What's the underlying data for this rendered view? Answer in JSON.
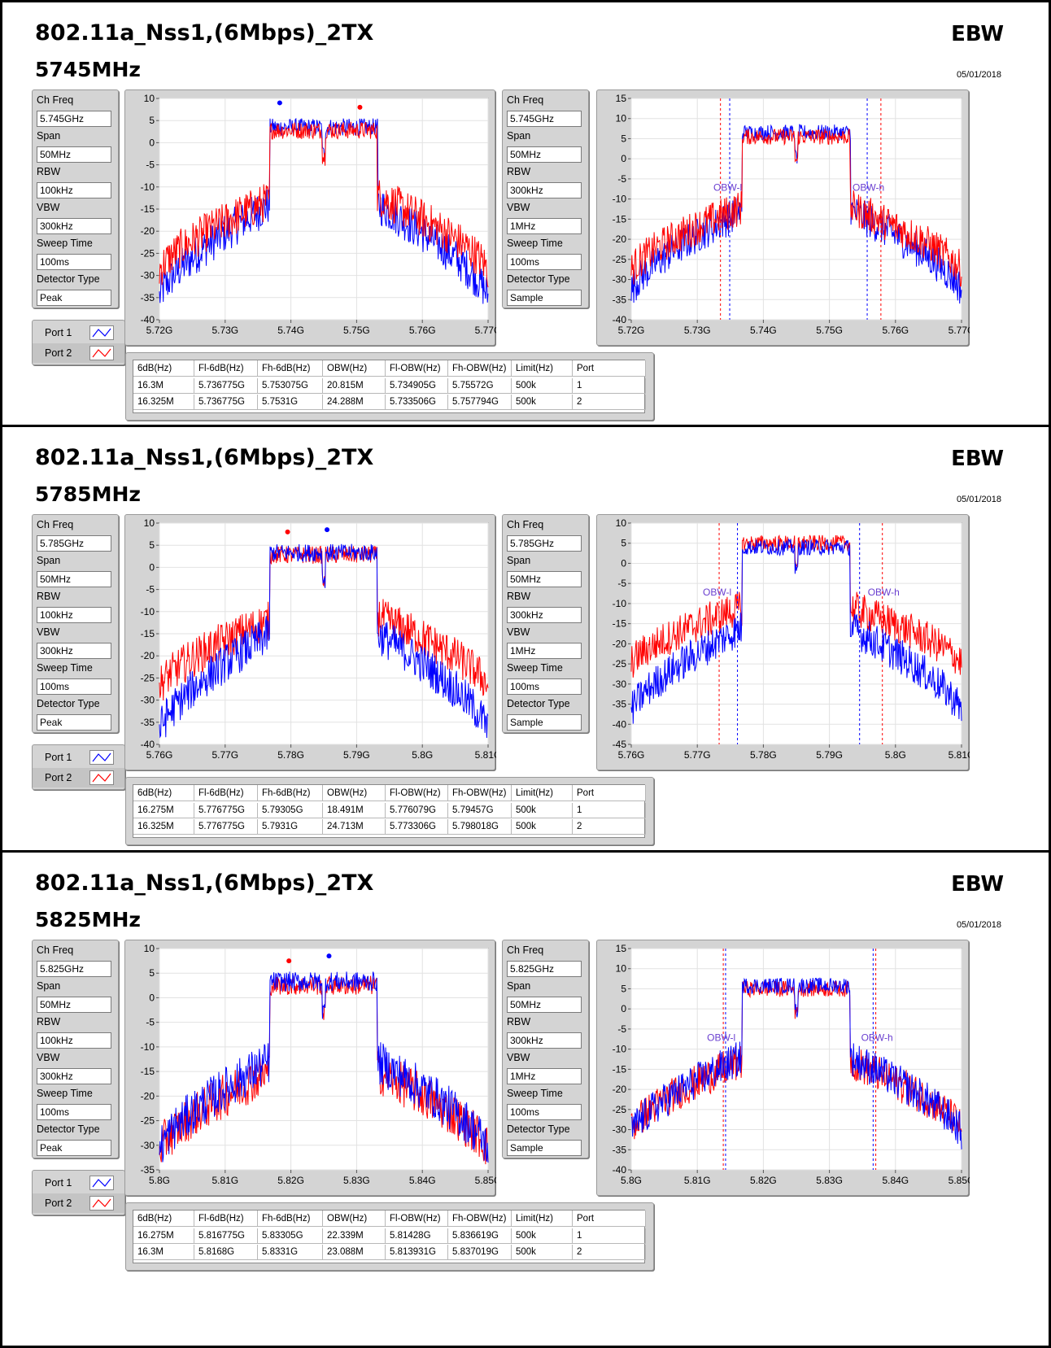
{
  "sections": [
    {
      "title": "802.11a_Nss1,(6Mbps)_2TX",
      "freq": "5745MHz",
      "ebw": "EBW",
      "date": "05/01/2018",
      "left_params": [
        {
          "label": "Ch Freq",
          "value": "5.745GHz"
        },
        {
          "label": "Span",
          "value": "50MHz"
        },
        {
          "label": "RBW",
          "value": "100kHz"
        },
        {
          "label": "VBW",
          "value": "300kHz"
        },
        {
          "label": "Sweep Time",
          "value": "100ms"
        },
        {
          "label": "Detector Type",
          "value": "Peak"
        }
      ],
      "right_params": [
        {
          "label": "Ch Freq",
          "value": "5.745GHz"
        },
        {
          "label": "Span",
          "value": "50MHz"
        },
        {
          "label": "RBW",
          "value": "300kHz"
        },
        {
          "label": "VBW",
          "value": "1MHz"
        },
        {
          "label": "Sweep Time",
          "value": "100ms"
        },
        {
          "label": "Detector Type",
          "value": "Sample"
        }
      ],
      "legend": [
        "Port 1",
        "Port 2"
      ],
      "chart1": {
        "type": "line",
        "yticks": [
          "10",
          "5",
          "0",
          "-5",
          "-10",
          "-15",
          "-20",
          "-25",
          "-30",
          "-35",
          "-40"
        ],
        "ylim": [
          -40,
          10
        ],
        "xticks": [
          "5.72G",
          "5.73G",
          "5.74G",
          "5.75G",
          "5.76G",
          "5.77G"
        ],
        "xlim": [
          5.72,
          5.77
        ],
        "series": [
          {
            "color": "#0000ff",
            "in_band": 3.5,
            "shoulder_left": -14,
            "shoulder_right": -14,
            "edge": -35,
            "band": [
              5.7368,
              5.7532
            ],
            "marker": [
              5.7383,
              9
            ]
          },
          {
            "color": "#ff0000",
            "in_band": 2.8,
            "shoulder_left": -13,
            "shoulder_right": -12,
            "edge": -29,
            "band": [
              5.7368,
              5.7531
            ],
            "marker": [
              5.7505,
              8
            ]
          }
        ]
      },
      "chart2": {
        "type": "line",
        "yticks": [
          "15",
          "10",
          "5",
          "0",
          "-5",
          "-10",
          "-15",
          "-20",
          "-25",
          "-30",
          "-35",
          "-40"
        ],
        "ylim": [
          -40,
          15
        ],
        "xticks": [
          "5.72G",
          "5.73G",
          "5.74G",
          "5.75G",
          "5.76G",
          "5.77G"
        ],
        "xlim": [
          5.72,
          5.77
        ],
        "annotations": [
          "OBW-l",
          "OBW-h"
        ],
        "series": [
          {
            "color": "#0000ff",
            "in_band": 6.5,
            "shoulder_left": -13,
            "shoulder_right": -13,
            "edge": -33,
            "band": [
              5.7368,
              5.7532
            ],
            "obw": [
              5.734905,
              5.75572
            ]
          },
          {
            "color": "#ff0000",
            "in_band": 5.5,
            "shoulder_left": -12,
            "shoulder_right": -12,
            "edge": -28,
            "band": [
              5.7368,
              5.7531
            ],
            "obw": [
              5.733506,
              5.757794
            ]
          }
        ]
      },
      "table": {
        "headers": [
          "6dB(Hz)",
          "Fl-6dB(Hz)",
          "Fh-6dB(Hz)",
          "OBW(Hz)",
          "Fl-OBW(Hz)",
          "Fh-OBW(Hz)",
          "Limit(Hz)",
          "Port"
        ],
        "rows": [
          [
            "16.3M",
            "5.736775G",
            "5.753075G",
            "20.815M",
            "5.734905G",
            "5.75572G",
            "500k",
            "1"
          ],
          [
            "16.325M",
            "5.736775G",
            "5.7531G",
            "24.288M",
            "5.733506G",
            "5.757794G",
            "500k",
            "2"
          ]
        ]
      }
    },
    {
      "title": "802.11a_Nss1,(6Mbps)_2TX",
      "freq": "5785MHz",
      "ebw": "EBW",
      "date": "05/01/2018",
      "left_params": [
        {
          "label": "Ch Freq",
          "value": "5.785GHz"
        },
        {
          "label": "Span",
          "value": "50MHz"
        },
        {
          "label": "RBW",
          "value": "100kHz"
        },
        {
          "label": "VBW",
          "value": "300kHz"
        },
        {
          "label": "Sweep Time",
          "value": "100ms"
        },
        {
          "label": "Detector Type",
          "value": "Peak"
        }
      ],
      "right_params": [
        {
          "label": "Ch Freq",
          "value": "5.785GHz"
        },
        {
          "label": "Span",
          "value": "50MHz"
        },
        {
          "label": "RBW",
          "value": "300kHz"
        },
        {
          "label": "VBW",
          "value": "1MHz"
        },
        {
          "label": "Sweep Time",
          "value": "100ms"
        },
        {
          "label": "Detector Type",
          "value": "Sample"
        }
      ],
      "legend": [
        "Port 1",
        "Port 2"
      ],
      "chart1": {
        "type": "line",
        "yticks": [
          "10",
          "5",
          "0",
          "-5",
          "-10",
          "-15",
          "-20",
          "-25",
          "-30",
          "-35",
          "-40"
        ],
        "ylim": [
          -40,
          10
        ],
        "xticks": [
          "5.76G",
          "5.77G",
          "5.78G",
          "5.79G",
          "5.8G",
          "5.81G"
        ],
        "xlim": [
          5.76,
          5.81
        ],
        "series": [
          {
            "color": "#ff0000",
            "in_band": 2.8,
            "shoulder_left": -12,
            "shoulder_right": -11,
            "edge": -27,
            "band": [
              5.7768,
              5.7931
            ],
            "marker": [
              5.7795,
              8
            ]
          },
          {
            "color": "#0000ff",
            "in_band": 3.3,
            "shoulder_left": -15,
            "shoulder_right": -15,
            "edge": -37,
            "band": [
              5.7768,
              5.7931
            ],
            "marker": [
              5.7855,
              8.5
            ]
          }
        ]
      },
      "chart2": {
        "type": "line",
        "yticks": [
          "10",
          "5",
          "0",
          "-5",
          "-10",
          "-15",
          "-20",
          "-25",
          "-30",
          "-35",
          "-40",
          "-45"
        ],
        "ylim": [
          -45,
          10
        ],
        "xticks": [
          "5.76G",
          "5.77G",
          "5.78G",
          "5.79G",
          "5.8G",
          "5.81G"
        ],
        "xlim": [
          5.76,
          5.81
        ],
        "annotations": [
          "OBW-l",
          "OBW-h"
        ],
        "series": [
          {
            "color": "#ff0000",
            "in_band": 5.0,
            "shoulder_left": -11,
            "shoulder_right": -11,
            "edge": -25,
            "band": [
              5.7768,
              5.7931
            ],
            "obw": [
              5.773306,
              5.798018
            ]
          },
          {
            "color": "#0000ff",
            "in_band": 4.0,
            "shoulder_left": -16,
            "shoulder_right": -16,
            "edge": -37,
            "band": [
              5.7768,
              5.7931
            ],
            "obw": [
              5.776079,
              5.79457
            ]
          }
        ]
      },
      "table": {
        "headers": [
          "6dB(Hz)",
          "Fl-6dB(Hz)",
          "Fh-6dB(Hz)",
          "OBW(Hz)",
          "Fl-OBW(Hz)",
          "Fh-OBW(Hz)",
          "Limit(Hz)",
          "Port"
        ],
        "rows": [
          [
            "16.275M",
            "5.776775G",
            "5.79305G",
            "18.491M",
            "5.776079G",
            "5.79457G",
            "500k",
            "1"
          ],
          [
            "16.325M",
            "5.776775G",
            "5.7931G",
            "24.713M",
            "5.773306G",
            "5.798018G",
            "500k",
            "2"
          ]
        ]
      }
    },
    {
      "title": "802.11a_Nss1,(6Mbps)_2TX",
      "freq": "5825MHz",
      "ebw": "EBW",
      "date": "05/01/2018",
      "left_params": [
        {
          "label": "Ch Freq",
          "value": "5.825GHz"
        },
        {
          "label": "Span",
          "value": "50MHz"
        },
        {
          "label": "RBW",
          "value": "100kHz"
        },
        {
          "label": "VBW",
          "value": "300kHz"
        },
        {
          "label": "Sweep Time",
          "value": "100ms"
        },
        {
          "label": "Detector Type",
          "value": "Peak"
        }
      ],
      "right_params": [
        {
          "label": "Ch Freq",
          "value": "5.825GHz"
        },
        {
          "label": "Span",
          "value": "50MHz"
        },
        {
          "label": "RBW",
          "value": "300kHz"
        },
        {
          "label": "VBW",
          "value": "1MHz"
        },
        {
          "label": "Sweep Time",
          "value": "100ms"
        },
        {
          "label": "Detector Type",
          "value": "Sample"
        }
      ],
      "legend": [
        "Port 1",
        "Port 2"
      ],
      "chart1": {
        "type": "line",
        "yticks": [
          "10",
          "5",
          "0",
          "-5",
          "-10",
          "-15",
          "-20",
          "-25",
          "-30",
          "-35"
        ],
        "ylim": [
          -35,
          10
        ],
        "xticks": [
          "5.8G",
          "5.81G",
          "5.82G",
          "5.83G",
          "5.84G",
          "5.85G"
        ],
        "xlim": [
          5.8,
          5.85
        ],
        "series": [
          {
            "color": "#ff0000",
            "in_band": 2.5,
            "shoulder_left": -15,
            "shoulder_right": -15,
            "edge": -31,
            "band": [
              5.8168,
              5.8331
            ],
            "marker": [
              5.8197,
              7.5
            ]
          },
          {
            "color": "#0000ff",
            "in_band": 3.3,
            "shoulder_left": -13,
            "shoulder_right": -13,
            "edge": -31,
            "band": [
              5.8168,
              5.8331
            ],
            "marker": [
              5.8258,
              8.5
            ]
          }
        ]
      },
      "chart2": {
        "type": "line",
        "yticks": [
          "15",
          "10",
          "5",
          "0",
          "-5",
          "-10",
          "-15",
          "-20",
          "-25",
          "-30",
          "-35",
          "-40"
        ],
        "ylim": [
          -40,
          15
        ],
        "xticks": [
          "5.8G",
          "5.81G",
          "5.82G",
          "5.83G",
          "5.84G",
          "5.85G"
        ],
        "xlim": [
          5.8,
          5.85
        ],
        "annotations": [
          "OBW-l",
          "OBW-h"
        ],
        "series": [
          {
            "color": "#ff0000",
            "in_band": 5.0,
            "shoulder_left": -13,
            "shoulder_right": -13,
            "edge": -30,
            "band": [
              5.8168,
              5.8331
            ],
            "obw": [
              5.813931,
              5.837019
            ]
          },
          {
            "color": "#0000ff",
            "in_band": 5.8,
            "shoulder_left": -12,
            "shoulder_right": -12,
            "edge": -31,
            "band": [
              5.8168,
              5.8331
            ],
            "obw": [
              5.81428,
              5.836619
            ]
          }
        ]
      },
      "table": {
        "headers": [
          "6dB(Hz)",
          "Fl-6dB(Hz)",
          "Fh-6dB(Hz)",
          "OBW(Hz)",
          "Fl-OBW(Hz)",
          "Fh-OBW(Hz)",
          "Limit(Hz)",
          "Port"
        ],
        "rows": [
          [
            "16.275M",
            "5.816775G",
            "5.83305G",
            "22.339M",
            "5.81428G",
            "5.836619G",
            "500k",
            "1"
          ],
          [
            "16.3M",
            "5.8168G",
            "5.8331G",
            "23.088M",
            "5.813931G",
            "5.837019G",
            "500k",
            "2"
          ]
        ]
      }
    }
  ]
}
